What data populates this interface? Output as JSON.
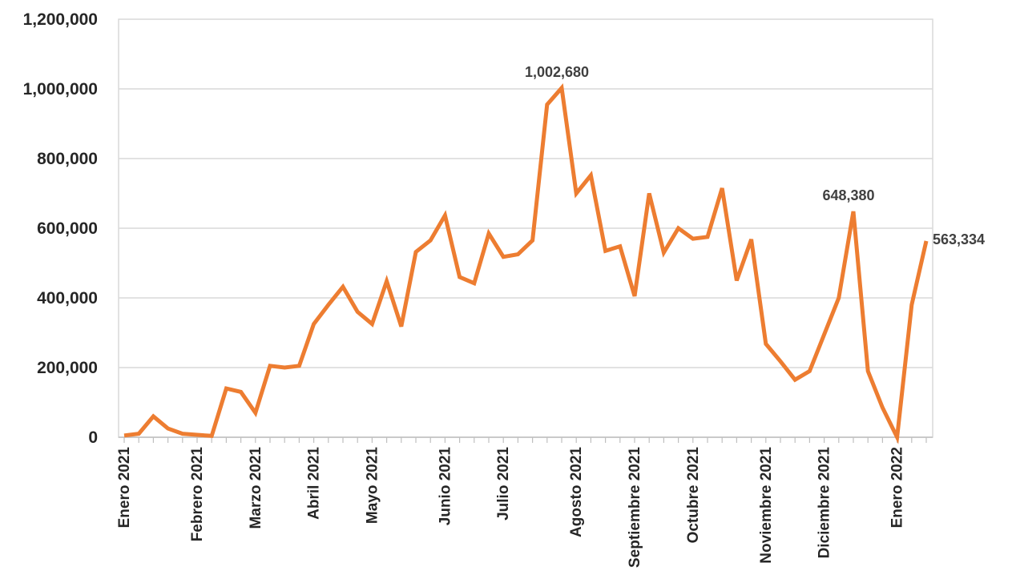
{
  "chart_data": {
    "type": "line",
    "title": "",
    "xlabel": "",
    "ylabel": "",
    "ylim": [
      0,
      1200000
    ],
    "grid": true,
    "legend": "none",
    "y_ticks": [
      {
        "value": 0,
        "label": "0"
      },
      {
        "value": 200000,
        "label": "200,000"
      },
      {
        "value": 400000,
        "label": "400,000"
      },
      {
        "value": 600000,
        "label": "600,000"
      },
      {
        "value": 800000,
        "label": "800,000"
      },
      {
        "value": 1000000,
        "label": "1,000,000"
      },
      {
        "value": 1200000,
        "label": "1,200,000"
      }
    ],
    "x_tick_labels": [
      {
        "label": "Enero 2021",
        "index": 0
      },
      {
        "label": "Febrero 2021",
        "index": 5
      },
      {
        "label": "Marzo 2021",
        "index": 9
      },
      {
        "label": "Abril 2021",
        "index": 13
      },
      {
        "label": "Mayo 2021",
        "index": 17
      },
      {
        "label": "Junio 2021",
        "index": 22
      },
      {
        "label": "Julio 2021",
        "index": 26
      },
      {
        "label": "Agosto 2021",
        "index": 31
      },
      {
        "label": "Septiembre 2021",
        "index": 35
      },
      {
        "label": "Octubre 2021",
        "index": 39
      },
      {
        "label": "Noviembre 2021",
        "index": 44
      },
      {
        "label": "Diciembre 2021",
        "index": 48
      },
      {
        "label": "Enero 2022",
        "index": 53
      }
    ],
    "series": [
      {
        "color": "#ED7D31",
        "values": [
          5000,
          10000,
          60000,
          25000,
          10000,
          7000,
          4000,
          140000,
          130000,
          70000,
          205000,
          200000,
          205000,
          325000,
          380000,
          432000,
          360000,
          325000,
          448000,
          318000,
          532000,
          565000,
          637000,
          460000,
          442000,
          585000,
          518000,
          525000,
          565000,
          955000,
          1002680,
          700000,
          752000,
          535000,
          548000,
          405000,
          700000,
          530000,
          600000,
          570000,
          575000,
          715000,
          450000,
          568000,
          268000,
          218000,
          165000,
          190000,
          295000,
          400000,
          648380,
          190000,
          85000,
          0,
          380000,
          563334
        ]
      }
    ],
    "data_labels": [
      {
        "index": 30,
        "text": "1,002,680"
      },
      {
        "index": 50,
        "text": "648,380"
      },
      {
        "index": 55,
        "text": "563,334"
      }
    ]
  }
}
